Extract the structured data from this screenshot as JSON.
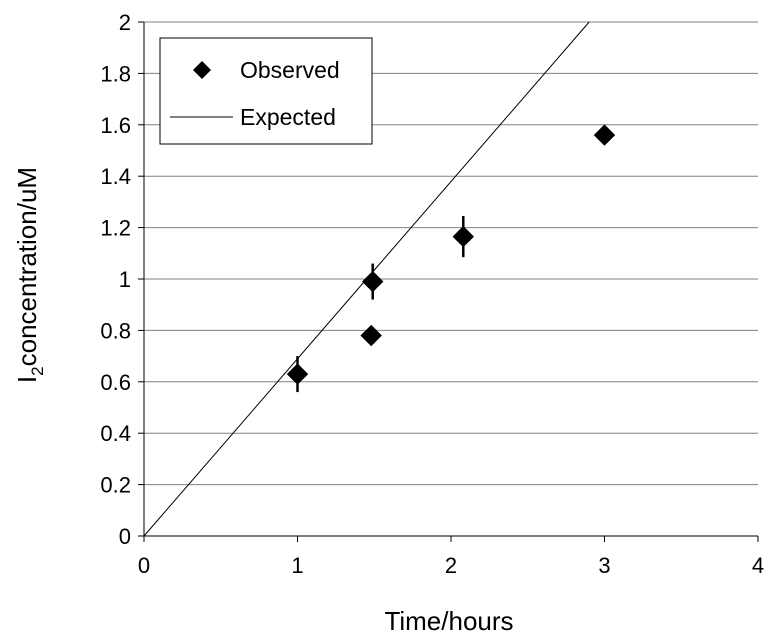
{
  "chart_data": {
    "type": "scatter",
    "xlabel": "Time/hours",
    "ylabel_main": "I",
    "ylabel_sub": "2",
    "ylabel_rest": "concentration/uM",
    "xlim": [
      0,
      4
    ],
    "ylim": [
      0,
      2
    ],
    "xticks": [
      "0",
      "1",
      "2",
      "3",
      "4"
    ],
    "yticks": [
      "0",
      "0.2",
      "0.4",
      "0.6",
      "0.8",
      "1",
      "1.2",
      "1.4",
      "1.6",
      "1.8",
      "2"
    ],
    "grid": "horizontal",
    "legend_position": "top-left",
    "series": [
      {
        "name": "Observed",
        "kind": "markers",
        "marker": "diamond",
        "color": "#000000",
        "points": [
          {
            "x": 1.0,
            "y": 0.63,
            "err": 0.07
          },
          {
            "x": 1.48,
            "y": 0.78,
            "err": 0
          },
          {
            "x": 1.49,
            "y": 0.99,
            "err": 0.07
          },
          {
            "x": 2.08,
            "y": 1.165,
            "err": 0.08
          },
          {
            "x": 3.0,
            "y": 1.56,
            "err": 0
          }
        ]
      },
      {
        "name": "Expected",
        "kind": "line",
        "color": "#000000",
        "points": [
          {
            "x": 0,
            "y": 0
          },
          {
            "x": 2.9,
            "y": 2.0
          }
        ]
      }
    ]
  }
}
